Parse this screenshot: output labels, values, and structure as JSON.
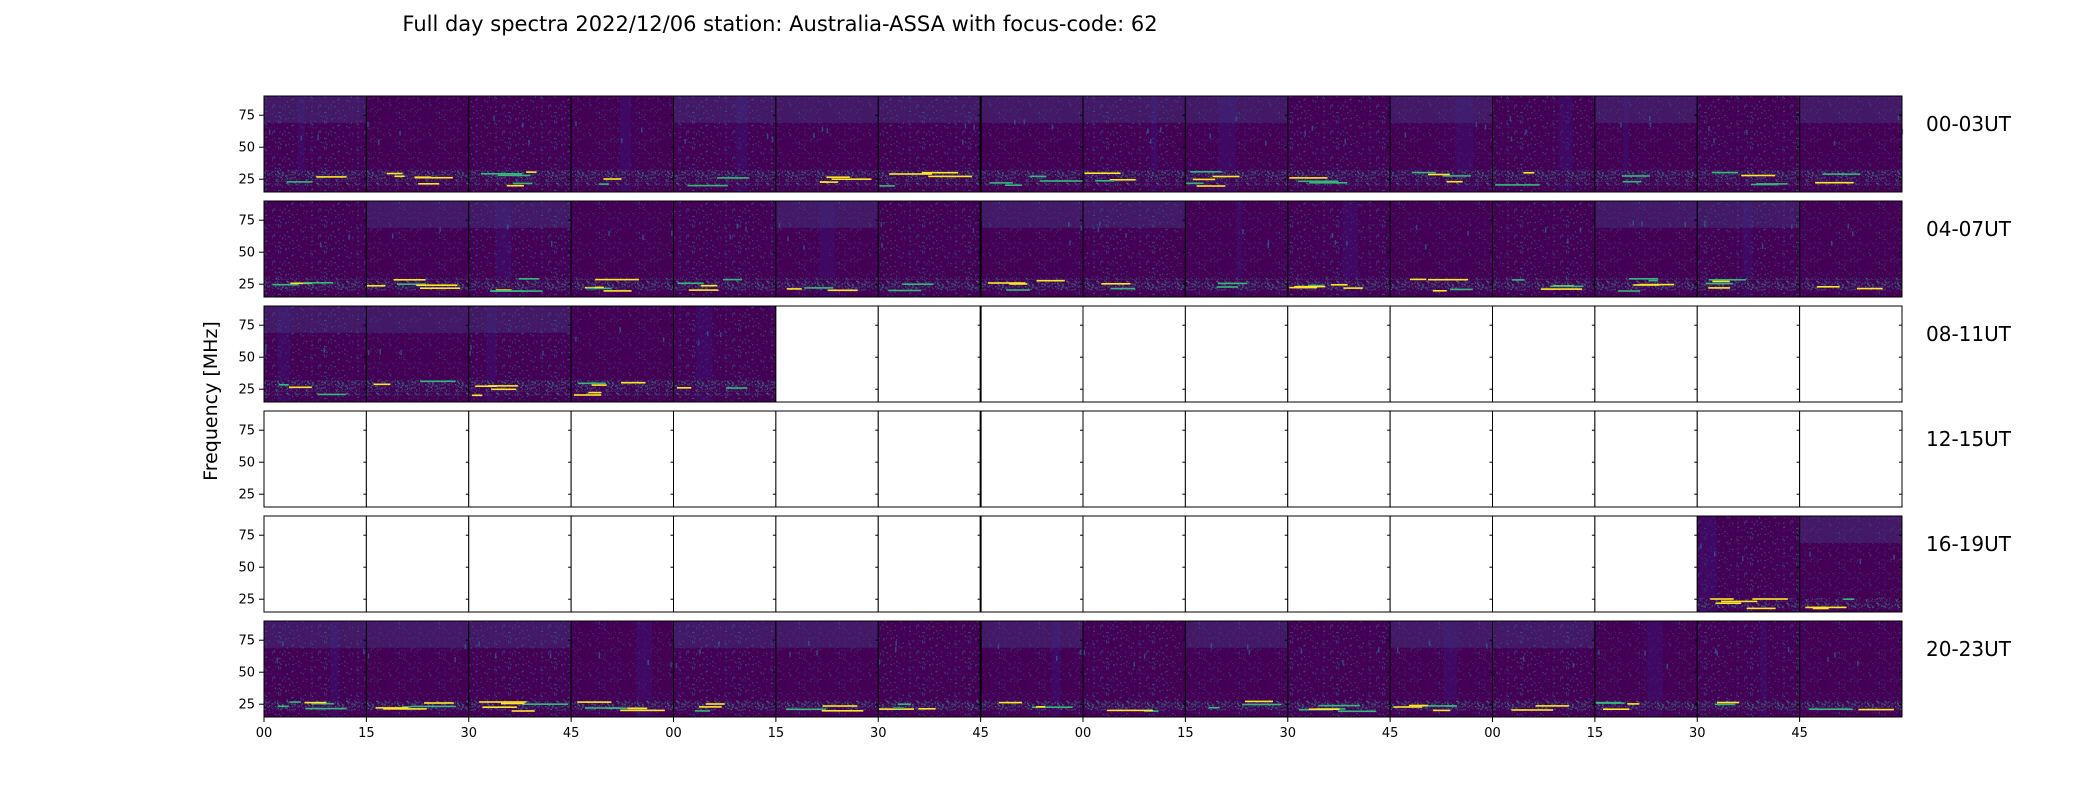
{
  "chart_data": {
    "type": "heatmap",
    "title": "Full day spectra 2022/12/06 station: Australia-ASSA with focus-code: 62",
    "ylabel": "Frequency [MHz]",
    "xlabel": "",
    "ylim": [
      15,
      90
    ],
    "y_ticks": [
      25,
      50,
      75
    ],
    "x_ticks": [
      "00",
      "15",
      "30",
      "45",
      "00",
      "15",
      "30",
      "45",
      "00",
      "15",
      "30",
      "45",
      "00",
      "15",
      "30",
      "45"
    ],
    "colormap": "viridis",
    "columns_per_row": 16,
    "minutes_per_column": 15,
    "rows": [
      {
        "label": "00-03UT",
        "data_columns": 16,
        "bright_band_mhz": [
          20,
          32
        ],
        "upper_features": true
      },
      {
        "label": "04-07UT",
        "data_columns": 16,
        "bright_band_mhz": [
          20,
          30
        ],
        "upper_features": true
      },
      {
        "label": "08-11UT",
        "data_columns": 5,
        "bright_band_mhz": [
          20,
          32
        ],
        "upper_features": true
      },
      {
        "label": "12-15UT",
        "data_columns": 0,
        "bright_band_mhz": [
          20,
          30
        ],
        "upper_features": false
      },
      {
        "label": "16-19UT",
        "data_columns": 2,
        "data_start_column": 14,
        "bright_band_mhz": [
          18,
          26
        ],
        "upper_features": true
      },
      {
        "label": "20-23UT",
        "data_columns": 16,
        "bright_band_mhz": [
          20,
          28
        ],
        "upper_features": true
      }
    ],
    "colors": {
      "background": "#440154",
      "low": "#3b0f70",
      "mid": "#31688e",
      "high": "#35b779",
      "peak": "#fde725"
    }
  }
}
